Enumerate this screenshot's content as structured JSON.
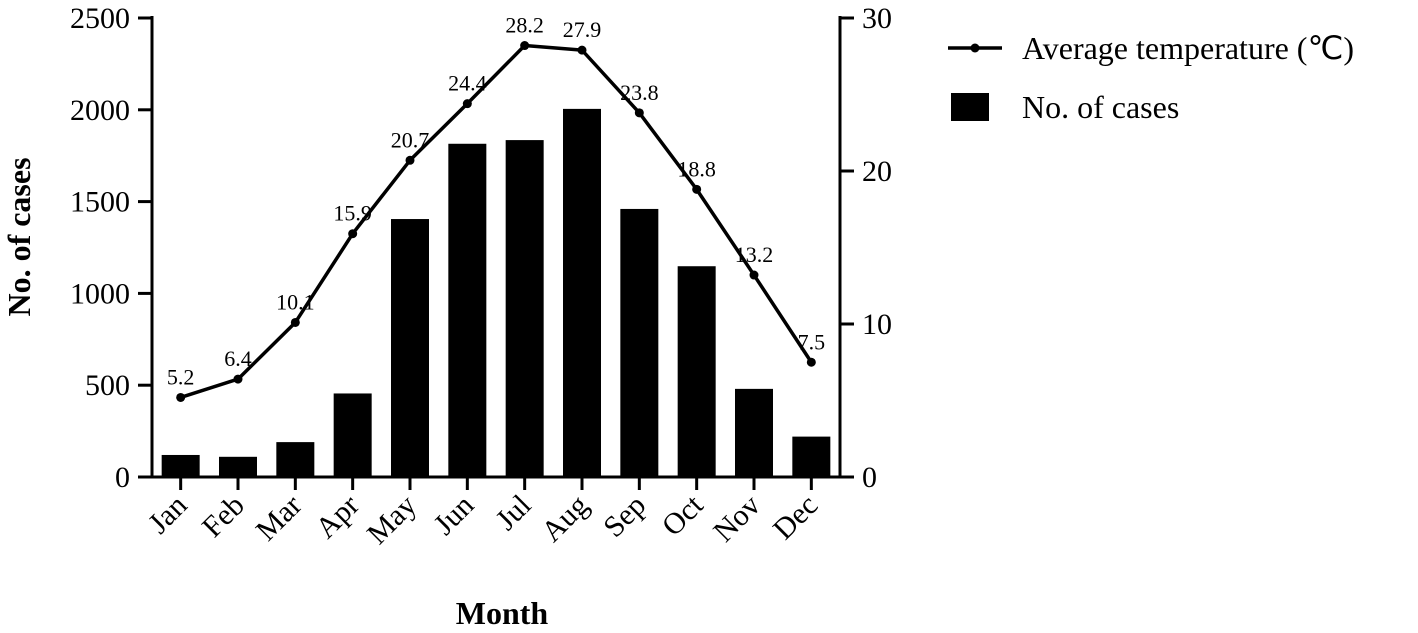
{
  "chart_data": {
    "type": "bar",
    "categories": [
      "Jan",
      "Feb",
      "Mar",
      "Apr",
      "May",
      "Jun",
      "Jul",
      "Aug",
      "Sep",
      "Oct",
      "Nov",
      "Dec"
    ],
    "series": [
      {
        "name": "No. of cases",
        "type": "bar",
        "axis": "left",
        "color": "#000000",
        "values": [
          120,
          110,
          190,
          455,
          1405,
          1815,
          1835,
          2005,
          1460,
          1148,
          480,
          220
        ]
      },
      {
        "name": "Average temperature (℃)",
        "type": "line",
        "axis": "right",
        "color": "#000000",
        "values": [
          5.2,
          6.4,
          10.1,
          15.9,
          20.7,
          24.4,
          28.2,
          27.9,
          23.8,
          18.8,
          13.2,
          7.5
        ],
        "labels": [
          "5.2",
          "6.4",
          "10.1",
          "15.9",
          "20.7",
          "24.4",
          "28.2",
          "27.9",
          "23.8",
          "18.8",
          "13.2",
          "7.5"
        ]
      }
    ],
    "xlabel": "Month",
    "ylabel": "No. of cases",
    "y2label": "",
    "ylim": [
      0,
      2500
    ],
    "yticks": [
      "0",
      "500",
      "1000",
      "1500",
      "2000",
      "2500"
    ],
    "y2lim": [
      0,
      30
    ],
    "y2ticks": [
      "0",
      "10",
      "20",
      "30"
    ],
    "grid": false,
    "legend": {
      "placement": "top-right",
      "entries": [
        "Average temperature (℃)",
        "No. of cases"
      ]
    }
  }
}
